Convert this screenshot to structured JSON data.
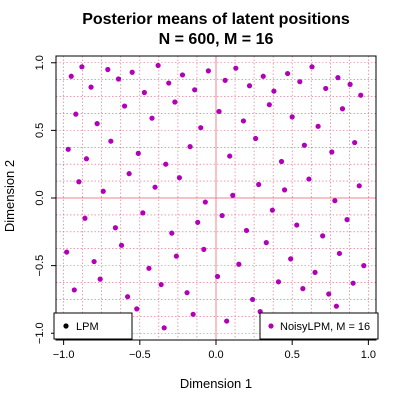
{
  "chart_data": {
    "type": "scatter",
    "title_line1": "Posterior means of latent positions",
    "title_line2": "N = 600, M = 16",
    "xlabel": "Dimension 1",
    "ylabel": "Dimension 2",
    "xlim": [
      -1.05,
      1.05
    ],
    "ylim": [
      -1.05,
      1.05
    ],
    "x_ticks": [
      -1.0,
      -0.5,
      0.0,
      0.5,
      1.0
    ],
    "x_tick_labels": [
      "−1.0",
      "−0.5",
      "0.0",
      "0.5",
      "1.0"
    ],
    "y_ticks": [
      -1.0,
      -0.5,
      0.0,
      0.5,
      1.0
    ],
    "y_tick_labels": [
      "−1.0",
      "−0.5",
      "0.0",
      "0.5",
      "1.0"
    ],
    "grid": "dotted, step 0.125",
    "grid_color": "#e0607a",
    "axis_cross_color": "#f08090",
    "point_color": "#b000b8",
    "lpm_color": "#000000",
    "legends": [
      {
        "label": "LPM",
        "placement": "bottom-left",
        "marker_color": "#000000"
      },
      {
        "label": "NoisyLPM, M = 16",
        "placement": "bottom-right",
        "marker_color": "#b000b8"
      }
    ],
    "series": [
      {
        "name": "NoisyLPM, M = 16",
        "x": [
          -0.95,
          -0.88,
          -0.82,
          -0.71,
          -0.64,
          -0.55,
          -0.47,
          -0.38,
          -0.31,
          -0.22,
          -0.14,
          -0.05,
          0.06,
          0.13,
          0.22,
          0.31,
          0.38,
          0.47,
          0.55,
          0.63,
          0.72,
          0.8,
          0.88,
          0.95,
          -0.92,
          -0.78,
          -0.6,
          -0.42,
          -0.27,
          -0.1,
          0.02,
          0.18,
          0.35,
          0.5,
          0.67,
          0.83,
          -0.97,
          -0.85,
          -0.69,
          -0.51,
          -0.33,
          -0.17,
          0.09,
          0.26,
          0.43,
          0.58,
          0.76,
          0.91,
          -0.9,
          -0.74,
          -0.57,
          -0.4,
          -0.24,
          -0.07,
          0.11,
          0.28,
          0.45,
          0.61,
          0.78,
          0.94,
          -0.86,
          -0.66,
          -0.48,
          -0.29,
          -0.12,
          0.04,
          0.2,
          0.37,
          0.53,
          0.7,
          0.86,
          -0.98,
          -0.8,
          -0.62,
          -0.44,
          -0.26,
          -0.08,
          0.15,
          0.33,
          0.49,
          0.65,
          0.81,
          0.97,
          -0.93,
          -0.76,
          -0.58,
          -0.36,
          -0.19,
          0.01,
          0.24,
          0.41,
          0.57,
          0.74,
          0.9,
          -0.89,
          -0.7,
          -0.52,
          -0.34,
          -0.15,
          0.07,
          0.29,
          0.46,
          0.62,
          0.79,
          0.93
        ],
        "y": [
          0.9,
          0.97,
          0.82,
          0.95,
          0.88,
          0.93,
          0.78,
          0.98,
          0.85,
          0.91,
          0.8,
          0.94,
          0.87,
          0.96,
          0.83,
          0.9,
          0.79,
          0.92,
          0.86,
          0.97,
          0.81,
          0.89,
          0.84,
          0.76,
          0.62,
          0.55,
          0.68,
          0.59,
          0.71,
          0.52,
          0.64,
          0.57,
          0.69,
          0.6,
          0.53,
          0.66,
          0.36,
          0.29,
          0.42,
          0.33,
          0.25,
          0.38,
          0.31,
          0.44,
          0.27,
          0.39,
          0.34,
          0.41,
          0.12,
          0.05,
          0.18,
          0.08,
          0.15,
          -0.03,
          0.02,
          0.1,
          0.06,
          0.14,
          -0.02,
          0.09,
          -0.15,
          -0.22,
          -0.11,
          -0.26,
          -0.18,
          -0.13,
          -0.24,
          -0.09,
          -0.2,
          -0.28,
          -0.16,
          -0.4,
          -0.47,
          -0.35,
          -0.52,
          -0.43,
          -0.38,
          -0.49,
          -0.33,
          -0.45,
          -0.55,
          -0.41,
          -0.5,
          -0.68,
          -0.6,
          -0.73,
          -0.64,
          -0.7,
          -0.58,
          -0.75,
          -0.62,
          -0.67,
          -0.71,
          -0.63,
          -0.88,
          -0.93,
          -0.82,
          -0.96,
          -0.86,
          -0.91,
          -0.84,
          -0.94,
          -0.89,
          -0.8,
          -0.92
        ]
      }
    ]
  }
}
